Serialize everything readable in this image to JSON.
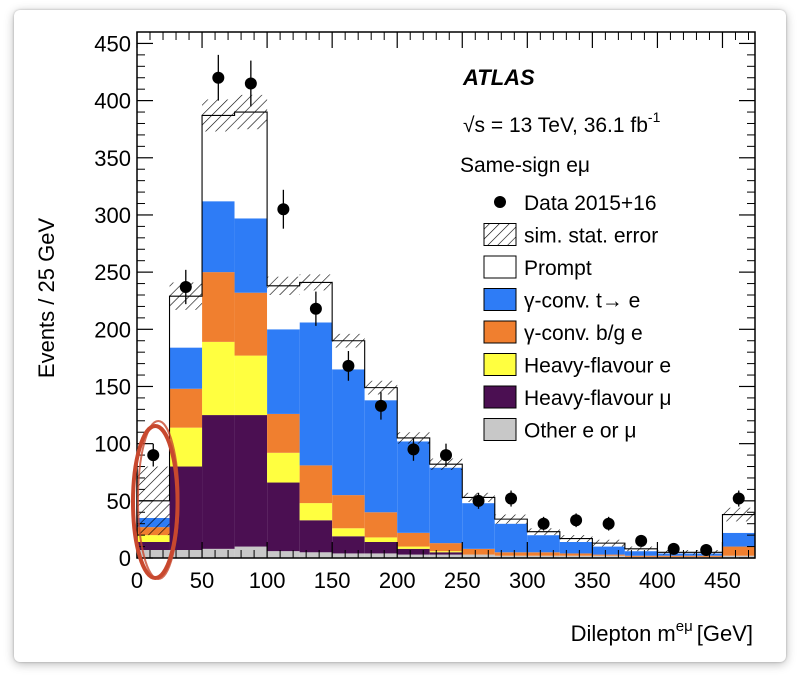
{
  "chart_data": {
    "type": "bar",
    "stacked": true,
    "xlabel": "Dilepton m",
    "xlabel_superscript": "eμ",
    "xlabel_unit": "[GeV]",
    "ylabel": "Events / 25 GeV",
    "xlim": [
      0,
      475
    ],
    "ylim": [
      0,
      460
    ],
    "x_ticks": [
      0,
      50,
      100,
      150,
      200,
      250,
      300,
      350,
      400,
      450
    ],
    "y_ticks": [
      0,
      50,
      100,
      150,
      200,
      250,
      300,
      350,
      400,
      450
    ],
    "bin_edges": [
      0,
      25,
      50,
      75,
      100,
      125,
      150,
      175,
      200,
      225,
      250,
      275,
      300,
      325,
      350,
      375,
      400,
      425,
      450,
      475
    ],
    "series": [
      {
        "name": "Other e or μ",
        "color": "#c8c8c8",
        "values": [
          7,
          7,
          8,
          10,
          6,
          5,
          4,
          4,
          3,
          3,
          3,
          2,
          2,
          2,
          2,
          1,
          1,
          1,
          2
        ]
      },
      {
        "name": "Heavy-flavour μ",
        "color": "#4b0f52",
        "values": [
          7,
          73,
          117,
          115,
          60,
          28,
          15,
          10,
          5,
          2,
          0,
          0,
          0,
          0,
          0,
          0,
          0,
          0,
          0
        ]
      },
      {
        "name": "Heavy-flavour e",
        "color": "#ffff40",
        "values": [
          6,
          34,
          64,
          52,
          26,
          15,
          7,
          4,
          2,
          1,
          0,
          0,
          0,
          0,
          0,
          0,
          0,
          0,
          0
        ]
      },
      {
        "name": "γ-conv. b/g e",
        "color": "#f07f2f",
        "values": [
          7,
          34,
          61,
          55,
          34,
          33,
          29,
          22,
          12,
          7,
          5,
          3,
          3,
          2,
          1,
          1,
          1,
          1,
          8
        ]
      },
      {
        "name": "γ-conv. t→ e",
        "color": "#2e7cf6",
        "values": [
          8,
          36,
          62,
          65,
          74,
          125,
          110,
          98,
          80,
          66,
          40,
          25,
          15,
          10,
          7,
          4,
          2,
          2,
          12
        ]
      },
      {
        "name": "Prompt",
        "color": "#ffffff",
        "values": [
          15,
          45,
          75,
          93,
          38,
          35,
          25,
          11,
          3,
          3,
          5,
          4,
          3,
          3,
          3,
          2,
          1,
          1,
          16
        ]
      }
    ],
    "sim_stat_error": [
      30,
      12,
      14,
      15,
      8,
      7,
      6,
      6,
      5,
      5,
      4,
      4,
      3,
      3,
      3,
      2,
      2,
      2,
      6
    ],
    "data": {
      "name": "Data 2015+16",
      "x": [
        12.5,
        37.5,
        62.5,
        87.5,
        112.5,
        137.5,
        162.5,
        187.5,
        212.5,
        237.5,
        262.5,
        287.5,
        312.5,
        337.5,
        362.5,
        387.5,
        412.5,
        437.5,
        462.5
      ],
      "y": [
        90,
        237,
        420,
        415,
        305,
        218,
        168,
        133,
        95,
        90,
        50,
        52,
        30,
        33,
        30,
        15,
        8,
        7,
        52
      ],
      "err": [
        10,
        15,
        20,
        20,
        17,
        15,
        13,
        12,
        10,
        10,
        7,
        7,
        6,
        6,
        6,
        4,
        3,
        3,
        7
      ]
    },
    "annotations": {
      "experiment": "ATLAS",
      "energy_prefix": "√s = 13 TeV, 36.1 fb",
      "energy_sup": "-1",
      "region": "Same-sign eμ"
    },
    "legend": {
      "placement": "top-right",
      "entries": [
        {
          "label": "Data 2015+16",
          "style": "marker"
        },
        {
          "label": "sim. stat. error",
          "style": "hatch"
        },
        {
          "label": "Prompt",
          "style": "fill",
          "color": "#ffffff"
        },
        {
          "label": "γ-conv. t→ e",
          "style": "fill",
          "color": "#2e7cf6"
        },
        {
          "label": "γ-conv. b/g e",
          "style": "fill",
          "color": "#f07f2f"
        },
        {
          "label": "Heavy-flavour e",
          "style": "fill",
          "color": "#ffff40"
        },
        {
          "label": "Heavy-flavour μ",
          "style": "fill",
          "color": "#4b0f52"
        },
        {
          "label": "Other e or μ",
          "style": "fill",
          "color": "#c8c8c8"
        }
      ]
    },
    "highlight": {
      "bin": [
        0,
        25
      ],
      "color": "#c8482e",
      "shape": "hand-drawn-ellipse"
    },
    "grid": false
  }
}
